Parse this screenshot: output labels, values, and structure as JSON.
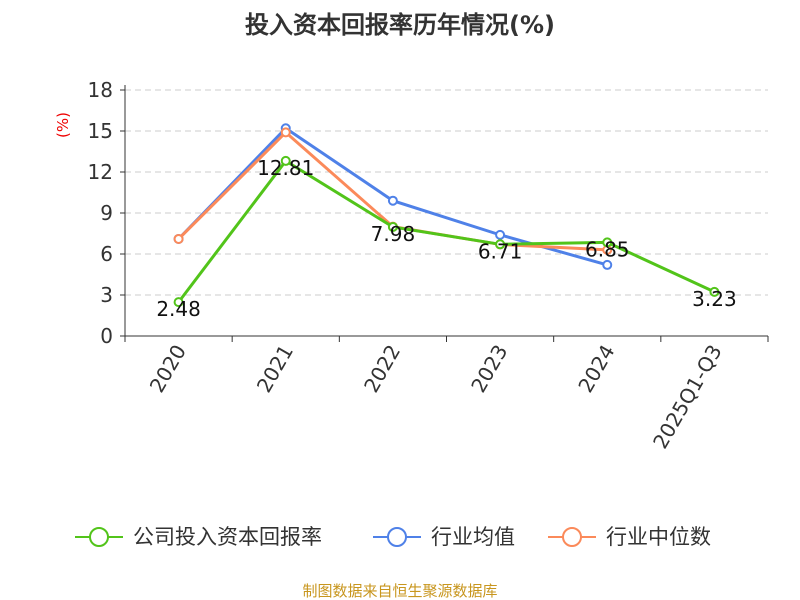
{
  "chart_data": {
    "type": "line",
    "title": "投入资本回报率历年情况(%)",
    "ylabel": "(%)",
    "categories": [
      "2020",
      "2021",
      "2022",
      "2023",
      "2024",
      "2025Q1-Q3"
    ],
    "ylim": [
      0,
      18
    ],
    "yticks": [
      0,
      3,
      6,
      9,
      12,
      15,
      18
    ],
    "grid": true,
    "legend_position": "bottom",
    "series": [
      {
        "name": "公司投入资本回报率",
        "color": "#52c41a",
        "values": [
          2.48,
          12.81,
          7.98,
          6.71,
          6.85,
          3.23
        ],
        "labels": [
          "2.48",
          "12.81",
          "7.98",
          "6.71",
          "6.85",
          "3.23"
        ]
      },
      {
        "name": "行业均值",
        "color": "#4f81e8",
        "values": [
          7.1,
          15.2,
          9.9,
          7.4,
          5.2,
          null
        ]
      },
      {
        "name": "行业中位数",
        "color": "#fb8a5a",
        "values": [
          7.1,
          14.9,
          8.0,
          6.7,
          6.3,
          null
        ]
      }
    ]
  },
  "footer": "制图数据来自恒生聚源数据库"
}
